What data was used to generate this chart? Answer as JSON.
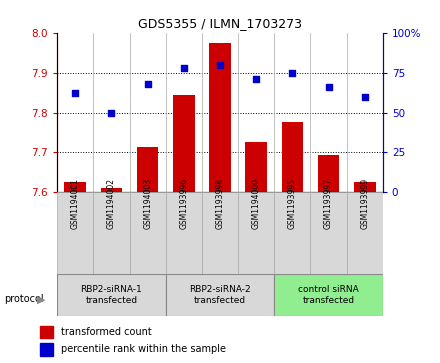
{
  "title": "GDS5355 / ILMN_1703273",
  "samples": [
    "GSM1194001",
    "GSM1194002",
    "GSM1194003",
    "GSM1193996",
    "GSM1193998",
    "GSM1194000",
    "GSM1193995",
    "GSM1193997",
    "GSM1193999"
  ],
  "bar_values": [
    7.627,
    7.612,
    7.713,
    7.843,
    7.973,
    7.726,
    7.777,
    7.693,
    7.627
  ],
  "dot_values": [
    62,
    50,
    68,
    78,
    80,
    71,
    75,
    66,
    60
  ],
  "ymin": 7.6,
  "ymax": 8.0,
  "y2min": 0,
  "y2max": 100,
  "yticks": [
    7.6,
    7.7,
    7.8,
    7.9,
    8.0
  ],
  "y2ticks": [
    0,
    25,
    50,
    75,
    100
  ],
  "bar_color": "#cc0000",
  "dot_color": "#0000cc",
  "groups": [
    {
      "label": "RBP2-siRNA-1\ntransfected",
      "start": 0,
      "end": 3
    },
    {
      "label": "RBP2-siRNA-2\ntransfected",
      "start": 3,
      "end": 6
    },
    {
      "label": "control siRNA\ntransfected",
      "start": 6,
      "end": 9
    }
  ],
  "group_colors": [
    "#d8d8d8",
    "#d8d8d8",
    "#90ee90"
  ],
  "protocol_label": "protocol",
  "legend_bar_label": "transformed count",
  "legend_dot_label": "percentile rank within the sample",
  "tick_label_color_left": "#cc0000",
  "tick_label_color_right": "#0000cc",
  "sample_bg_color": "#d8d8d8"
}
